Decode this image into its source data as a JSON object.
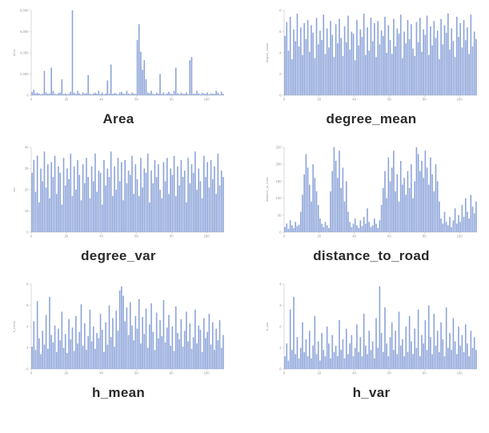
{
  "style": {
    "bar_color": "#8ba3d9",
    "axis_color": "#c9c9c9",
    "tick_text_color": "#9a9a9a",
    "caption_color": "#2a2a2a",
    "background": "#ffffff"
  },
  "chart_data": [
    {
      "type": "bar",
      "title": "Area",
      "ylabel": "Area",
      "ymax": 8000,
      "ylim": [
        0,
        8000
      ],
      "y_ticks": [
        "0",
        "2,000",
        "4,000",
        "6,000",
        "8,000"
      ],
      "x_ticks": [
        "0",
        "20",
        "40",
        "60",
        "80",
        "100"
      ],
      "values": [
        300,
        520,
        180,
        240,
        160,
        90,
        140,
        2300,
        260,
        130,
        170,
        2600,
        420,
        150,
        90,
        200,
        260,
        1500,
        120,
        180,
        90,
        140,
        330,
        8000,
        240,
        130,
        420,
        180,
        90,
        260,
        150,
        200,
        1900,
        130,
        90,
        170,
        240,
        150,
        420,
        130,
        260,
        90,
        180,
        1400,
        150,
        2900,
        130,
        200,
        170,
        90,
        260,
        330,
        150,
        130,
        420,
        180,
        90,
        240,
        150,
        130,
        5200,
        6700,
        4100,
        2400,
        3300,
        1500,
        260,
        180,
        420,
        130,
        90,
        240,
        150,
        2000,
        130,
        260,
        90,
        180,
        330,
        150,
        130,
        420,
        2600,
        180,
        90,
        240,
        150,
        130,
        260,
        90,
        3300,
        3600,
        150,
        130,
        420,
        180,
        90,
        240,
        150,
        130,
        260,
        90,
        180,
        150,
        130,
        420,
        240,
        90,
        330,
        130
      ]
    },
    {
      "type": "bar",
      "title": "degree_mean",
      "ylabel": "degree_mean",
      "ymax": 8,
      "ylim": [
        0,
        8
      ],
      "y_ticks": [
        "0",
        "2",
        "4",
        "6",
        "8"
      ],
      "x_ticks": [
        "0",
        "20",
        "40",
        "60",
        "80",
        "100"
      ],
      "values": [
        5.6,
        6.9,
        4.2,
        7.4,
        3.4,
        6.2,
        5.1,
        7.7,
        4.6,
        6.4,
        3.8,
        6.8,
        5.3,
        7.1,
        4.1,
        6.6,
        5.9,
        3.5,
        7.3,
        4.8,
        6.1,
        5.2,
        7.6,
        3.9,
        6.3,
        4.5,
        7.0,
        5.7,
        3.6,
        6.7,
        4.9,
        7.2,
        5.4,
        3.7,
        6.5,
        5.0,
        7.5,
        4.3,
        6.0,
        5.8,
        3.3,
        7.1,
        4.7,
        6.2,
        5.5,
        7.7,
        3.8,
        6.4,
        4.2,
        7.3,
        5.1,
        6.8,
        3.6,
        7.0,
        4.8,
        6.1,
        5.6,
        7.4,
        4.0,
        6.6,
        5.2,
        3.9,
        7.2,
        4.6,
        6.3,
        5.8,
        7.6,
        3.5,
        6.0,
        4.9,
        7.1,
        5.3,
        6.7,
        4.4,
        3.7,
        6.9,
        5.0,
        7.3,
        4.1,
        6.2,
        5.7,
        7.5,
        3.8,
        6.5,
        4.7,
        7.0,
        5.4,
        6.1,
        3.4,
        7.2,
        4.8,
        6.6,
        5.9,
        7.7,
        4.3,
        6.3,
        5.1,
        3.6,
        7.4,
        5.5,
        6.8,
        4.5,
        7.1,
        5.2,
        6.4,
        3.9,
        7.6,
        4.6,
        6.0,
        5.3
      ]
    },
    {
      "type": "bar",
      "title": "degree_var",
      "ylabel": "var",
      "ymax": 40,
      "ylim": [
        0,
        40
      ],
      "y_ticks": [
        "0",
        "10",
        "20",
        "30",
        "40"
      ],
      "x_ticks": [
        "0",
        "20",
        "40",
        "60",
        "80",
        "100"
      ],
      "values": [
        28,
        34,
        19,
        36,
        14,
        30,
        24,
        38,
        21,
        32,
        16,
        33,
        26,
        36,
        18,
        31,
        28,
        13,
        35,
        22,
        30,
        25,
        37,
        17,
        31,
        20,
        34,
        27,
        15,
        32,
        23,
        35,
        26,
        16,
        31,
        24,
        37,
        19,
        29,
        28,
        13,
        34,
        22,
        30,
        26,
        38,
        17,
        31,
        20,
        35,
        24,
        33,
        15,
        34,
        23,
        29,
        27,
        36,
        18,
        32,
        25,
        17,
        35,
        21,
        30,
        28,
        37,
        14,
        29,
        23,
        34,
        26,
        32,
        20,
        16,
        33,
        24,
        35,
        18,
        30,
        27,
        36,
        17,
        31,
        22,
        34,
        26,
        29,
        14,
        35,
        23,
        32,
        28,
        38,
        20,
        30,
        24,
        16,
        36,
        26,
        33,
        21,
        34,
        25,
        31,
        18,
        37,
        22,
        29,
        26
      ]
    },
    {
      "type": "bar",
      "title": "distance_to_road",
      "ylabel": "distance_to_road",
      "ymax": 250,
      "ylim": [
        0,
        250
      ],
      "y_ticks": [
        "0",
        "50",
        "100",
        "150",
        "200",
        "250"
      ],
      "x_ticks": [
        "0",
        "20",
        "40",
        "60",
        "80",
        "100"
      ],
      "values": [
        15,
        25,
        10,
        35,
        20,
        12,
        30,
        18,
        22,
        60,
        110,
        170,
        230,
        190,
        140,
        90,
        200,
        160,
        120,
        80,
        40,
        25,
        15,
        30,
        20,
        12,
        120,
        180,
        250,
        210,
        160,
        240,
        130,
        190,
        90,
        150,
        60,
        30,
        15,
        25,
        40,
        20,
        12,
        35,
        18,
        45,
        25,
        70,
        30,
        15,
        20,
        40,
        25,
        12,
        35,
        80,
        130,
        180,
        100,
        220,
        150,
        190,
        240,
        120,
        170,
        90,
        210,
        140,
        160,
        110,
        180,
        130,
        200,
        100,
        150,
        250,
        230,
        180,
        210,
        160,
        240,
        190,
        140,
        220,
        170,
        120,
        200,
        150,
        90,
        40,
        25,
        60,
        30,
        20,
        45,
        15,
        35,
        70,
        25,
        50,
        30,
        80,
        45,
        100,
        60,
        40,
        110,
        75,
        55,
        90
      ]
    },
    {
      "type": "bar",
      "title": "h_mean",
      "ylabel": "h_mean",
      "ymax": 8,
      "ylim": [
        0,
        8
      ],
      "y_ticks": [
        "0",
        "2",
        "4",
        "6",
        "8"
      ],
      "x_ticks": [
        "0",
        "20",
        "40",
        "60",
        "80",
        "100"
      ],
      "values": [
        2.1,
        4.5,
        1.8,
        6.4,
        2.9,
        1.4,
        3.6,
        2.3,
        5.1,
        1.9,
        6.8,
        3.2,
        2.5,
        4.1,
        1.6,
        3.8,
        2.7,
        5.4,
        2.0,
        3.3,
        1.5,
        4.7,
        2.8,
        3.9,
        1.7,
        5.0,
        2.4,
        3.5,
        6.1,
        2.2,
        4.3,
        1.8,
        3.1,
        5.6,
        2.6,
        4.0,
        1.9,
        3.4,
        2.9,
        5.2,
        3.7,
        1.6,
        4.4,
        2.3,
        6.0,
        3.0,
        4.8,
        2.1,
        5.5,
        3.6,
        7.4,
        7.8,
        6.9,
        4.5,
        5.8,
        3.2,
        6.3,
        4.1,
        2.7,
        5.0,
        3.8,
        6.6,
        2.4,
        4.9,
        3.3,
        5.7,
        2.0,
        4.2,
        6.2,
        3.5,
        1.8,
        5.3,
        2.9,
        4.6,
        3.1,
        6.5,
        2.5,
        3.9,
        5.1,
        2.2,
        4.0,
        1.7,
        5.9,
        3.4,
        2.8,
        4.7,
        2.1,
        3.6,
        5.4,
        2.6,
        4.3,
        1.9,
        3.0,
        5.6,
        2.4,
        4.1,
        3.7,
        1.6,
        4.8,
        2.9,
        3.5,
        5.2,
        2.3,
        4.4,
        1.8,
        3.8,
        2.7,
        4.6,
        2.0,
        3.2
      ]
    },
    {
      "type": "bar",
      "title": "h_var",
      "ylabel": "h_var",
      "ymax": 4,
      "ylim": [
        0,
        4
      ],
      "y_ticks": [
        "0",
        "1",
        "2",
        "3",
        "4"
      ],
      "x_ticks": [
        "0",
        "20",
        "40",
        "60",
        "80",
        "100"
      ],
      "values": [
        0.6,
        1.2,
        0.4,
        2.8,
        0.9,
        3.4,
        0.7,
        1.5,
        0.5,
        1.0,
        2.2,
        0.8,
        1.4,
        0.6,
        1.8,
        0.5,
        1.1,
        2.5,
        0.7,
        1.3,
        0.4,
        1.7,
        0.9,
        0.6,
        2.0,
        1.2,
        0.5,
        1.6,
        0.8,
        1.1,
        0.6,
        2.3,
        0.9,
        1.4,
        0.5,
        1.9,
        0.7,
        1.2,
        1.6,
        0.6,
        1.0,
        2.1,
        0.8,
        1.5,
        0.6,
        2.6,
        1.1,
        0.7,
        1.8,
        0.9,
        1.3,
        0.5,
        2.4,
        1.0,
        3.9,
        1.7,
        0.8,
        2.9,
        1.2,
        0.6,
        1.5,
        2.2,
        0.9,
        1.8,
        0.7,
        2.7,
        1.1,
        1.4,
        0.6,
        2.0,
        0.8,
        2.5,
        1.3,
        0.7,
        1.9,
        1.0,
        2.8,
        0.6,
        1.6,
        1.2,
        2.3,
        0.9,
        3.0,
        1.5,
        0.7,
        2.6,
        1.1,
        1.8,
        0.8,
        2.2,
        1.4,
        0.6,
        2.9,
        1.0,
        1.7,
        0.9,
        2.4,
        1.3,
        0.7,
        2.0,
        1.1,
        1.6,
        0.8,
        2.1,
        1.2,
        0.6,
        1.8,
        1.0,
        1.5,
        0.9
      ]
    }
  ]
}
